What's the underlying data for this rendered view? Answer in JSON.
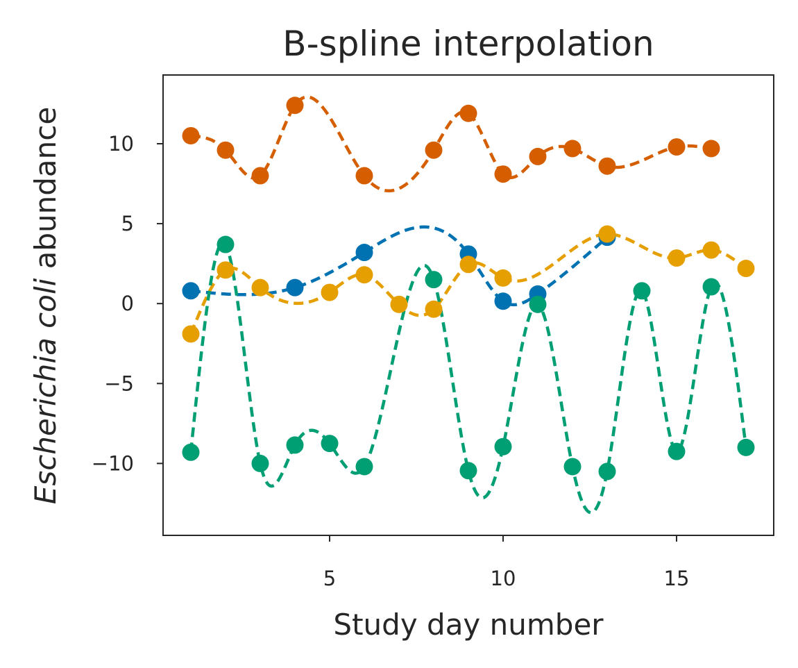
{
  "chart_data": {
    "type": "line",
    "title": "B-spline interpolation",
    "xlabel": "Study day number",
    "ylabel": {
      "italic": "Escherichia coli",
      "regular": " abundance"
    },
    "xlim": [
      0.2,
      17.8
    ],
    "ylim": [
      -14.5,
      14.3
    ],
    "xticks": [
      {
        "value": 5,
        "label": "5"
      },
      {
        "value": 10,
        "label": "10"
      },
      {
        "value": 15,
        "label": "15"
      }
    ],
    "yticks": [
      {
        "value": 10,
        "label": "10"
      },
      {
        "value": 5,
        "label": "5"
      },
      {
        "value": 0,
        "label": "0"
      },
      {
        "value": -5,
        "label": "−5"
      },
      {
        "value": -10,
        "label": "−10"
      }
    ],
    "grid": false,
    "series": [
      {
        "color": "#0072b2",
        "x": [
          1,
          4,
          6,
          9,
          10,
          11,
          13
        ],
        "y": [
          0.8,
          1.0,
          3.2,
          3.1,
          0.15,
          0.6,
          4.15
        ]
      },
      {
        "color": "#d55e00",
        "x": [
          1,
          2,
          3,
          4,
          6,
          8,
          9,
          10,
          11,
          12,
          13,
          15,
          16
        ],
        "y": [
          10.5,
          9.6,
          8.0,
          12.4,
          8.0,
          9.6,
          11.9,
          8.1,
          9.2,
          9.7,
          8.6,
          9.8,
          9.7
        ]
      },
      {
        "color": "#e69f00",
        "x": [
          1,
          2,
          3,
          5,
          6,
          7,
          8,
          9,
          10,
          13,
          15,
          16,
          17
        ],
        "y": [
          -1.9,
          2.1,
          1.0,
          0.7,
          1.8,
          -0.05,
          -0.35,
          2.45,
          1.6,
          4.35,
          2.85,
          3.35,
          2.2
        ]
      },
      {
        "color": "#009e73",
        "x": [
          1,
          2,
          3,
          4,
          5,
          6,
          8,
          9,
          10,
          11,
          12,
          13,
          14,
          15,
          16,
          17
        ],
        "y": [
          -9.3,
          3.7,
          -10.0,
          -8.85,
          -8.75,
          -10.2,
          1.5,
          -10.45,
          -8.95,
          -0.05,
          -10.2,
          -10.5,
          0.8,
          -9.25,
          1.05,
          -9.0
        ]
      }
    ]
  }
}
